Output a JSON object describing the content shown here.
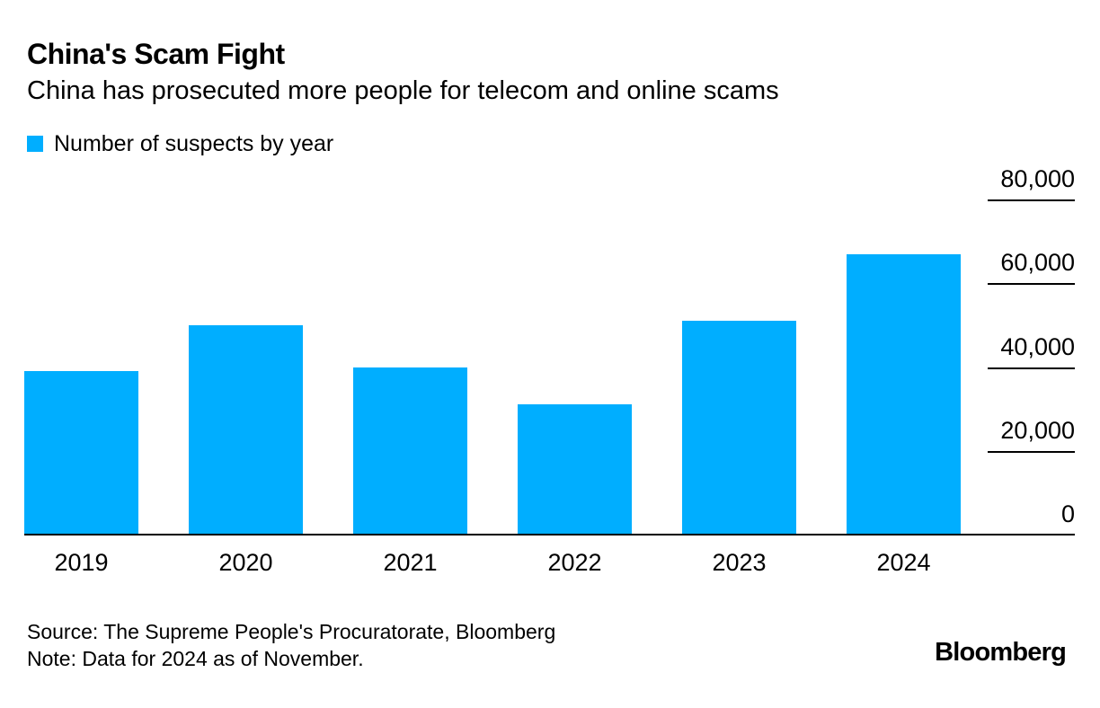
{
  "chart_data": {
    "type": "bar",
    "title": "China's Scam Fight",
    "subtitle": "China has prosecuted more people for telecom and online scams",
    "legend": "Number of suspects by year",
    "categories": [
      "2019",
      "2020",
      "2021",
      "2022",
      "2023",
      "2024"
    ],
    "values": [
      39000,
      50000,
      40000,
      31000,
      51000,
      67000
    ],
    "series": [
      {
        "name": "Number of suspects by year",
        "values": [
          39000,
          50000,
          40000,
          31000,
          51000,
          67000
        ]
      }
    ],
    "xlabel": "",
    "ylabel": "",
    "ylim": [
      0,
      80000
    ],
    "yticks": [
      {
        "label": "0",
        "value": 0
      },
      {
        "label": "20,000",
        "value": 20000
      },
      {
        "label": "40,000",
        "value": 40000
      },
      {
        "label": "60,000",
        "value": 60000
      },
      {
        "label": "80,000",
        "value": 80000
      }
    ],
    "legend_position": "top-left",
    "grid": "horizontal ticks on right side, labels above lines"
  },
  "footer": {
    "source": "Source: The Supreme People's Procuratorate, Bloomberg",
    "note": "Note: Data for 2024 as of November.",
    "brand": "Bloomberg"
  },
  "colors": {
    "bar": "#00aeff",
    "text": "#000000",
    "axis": "#000000",
    "background": "#ffffff"
  }
}
